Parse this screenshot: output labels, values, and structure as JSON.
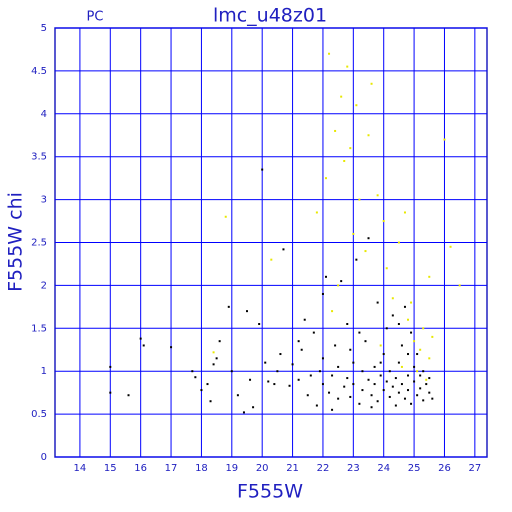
{
  "chart_data": {
    "type": "scatter",
    "title": "lmc_u48z01",
    "subtitle": "PC",
    "x_label": "F555W",
    "y_label": "F555W  chi",
    "xlim": [
      13.18,
      27.4
    ],
    "ylim": [
      0,
      5
    ],
    "xticks": [
      14,
      15,
      16,
      17,
      18,
      19,
      20,
      21,
      22,
      23,
      24,
      25,
      26,
      27
    ],
    "yticks": [
      0,
      0.5,
      1,
      1.5,
      2,
      2.5,
      3,
      3.5,
      4,
      4.5,
      5
    ],
    "grid": true,
    "grid_color": "#0000ff",
    "axis_color": "#2020c0",
    "series": [
      {
        "color": "#000000",
        "x": [
          15.0,
          15.0,
          15.6,
          16.0,
          16.1,
          17.0,
          17.7,
          17.8,
          18.0,
          18.2,
          18.3,
          18.4,
          18.5,
          18.6,
          18.9,
          19.0,
          19.2,
          19.4,
          19.5,
          19.6,
          19.7,
          19.9,
          20.0,
          20.1,
          20.2,
          20.4,
          20.6,
          20.7,
          20.9,
          21.0,
          21.2,
          21.3,
          21.4,
          21.5,
          21.6,
          21.7,
          21.8,
          21.9,
          22.0,
          22.0,
          22.1,
          22.2,
          22.3,
          22.4,
          22.5,
          22.5,
          22.6,
          22.7,
          22.8,
          22.8,
          22.9,
          23.0,
          23.0,
          23.1,
          23.2,
          23.3,
          23.3,
          23.4,
          23.5,
          23.5,
          23.6,
          23.7,
          23.7,
          23.8,
          23.8,
          23.9,
          24.0,
          24.0,
          24.1,
          24.1,
          24.2,
          24.2,
          24.3,
          24.3,
          24.4,
          24.4,
          24.5,
          24.5,
          24.6,
          24.6,
          24.7,
          24.7,
          24.8,
          24.8,
          24.9,
          24.9,
          25.0,
          25.0,
          25.1,
          25.1,
          25.2,
          25.2,
          25.3,
          25.3,
          25.4,
          25.5,
          25.5,
          25.6,
          22.3,
          23.6,
          22.0,
          22.9,
          24.5,
          21.2,
          20.5,
          24.8,
          23.2,
          23.9
        ],
        "values": [
          1.05,
          0.75,
          0.72,
          1.38,
          1.3,
          1.28,
          1.0,
          0.93,
          0.78,
          0.85,
          0.65,
          1.08,
          1.15,
          1.35,
          1.75,
          1.0,
          0.72,
          0.52,
          1.7,
          0.9,
          0.58,
          1.55,
          3.35,
          1.1,
          0.88,
          0.85,
          1.2,
          2.42,
          0.83,
          1.08,
          0.9,
          1.25,
          1.6,
          0.72,
          0.95,
          1.45,
          0.6,
          1.0,
          0.85,
          1.15,
          2.1,
          0.75,
          0.95,
          1.3,
          0.68,
          1.05,
          2.05,
          0.82,
          1.55,
          0.92,
          0.7,
          1.1,
          0.85,
          2.3,
          0.62,
          1.0,
          0.78,
          1.35,
          0.9,
          2.55,
          0.72,
          1.05,
          0.85,
          1.8,
          0.65,
          0.95,
          0.78,
          1.2,
          0.88,
          1.5,
          0.7,
          1.0,
          0.82,
          1.65,
          0.92,
          0.6,
          1.1,
          0.75,
          1.3,
          0.85,
          0.68,
          1.75,
          0.95,
          0.78,
          1.45,
          0.62,
          0.88,
          1.05,
          0.72,
          1.2,
          0.95,
          0.8,
          0.66,
          1.0,
          0.85,
          0.75,
          0.92,
          0.68,
          0.55,
          0.58,
          1.9,
          1.25,
          1.55,
          1.35,
          1.0,
          1.2,
          1.45,
          1.1
        ]
      },
      {
        "color": "#e8e800",
        "x": [
          18.4,
          18.8,
          20.3,
          21.8,
          22.1,
          22.2,
          22.4,
          22.6,
          22.7,
          22.8,
          22.9,
          23.0,
          23.1,
          23.2,
          23.4,
          23.5,
          23.6,
          23.8,
          24.0,
          24.1,
          24.3,
          24.5,
          24.7,
          24.8,
          25.0,
          25.1,
          25.2,
          25.3,
          25.4,
          25.5,
          25.5,
          25.6,
          26.0,
          26.2,
          26.5,
          24.9,
          24.6,
          23.9,
          22.5,
          22.3
        ],
        "values": [
          1.22,
          2.8,
          2.3,
          2.85,
          3.25,
          4.7,
          3.8,
          4.2,
          3.45,
          4.55,
          3.6,
          2.6,
          4.1,
          3.0,
          2.4,
          3.75,
          4.35,
          3.05,
          2.75,
          2.2,
          1.85,
          2.5,
          2.85,
          1.6,
          1.35,
          1.0,
          1.25,
          1.5,
          0.9,
          1.15,
          2.1,
          1.4,
          3.7,
          2.45,
          2.0,
          1.8,
          1.05,
          1.3,
          2.0,
          1.7
        ]
      }
    ]
  }
}
